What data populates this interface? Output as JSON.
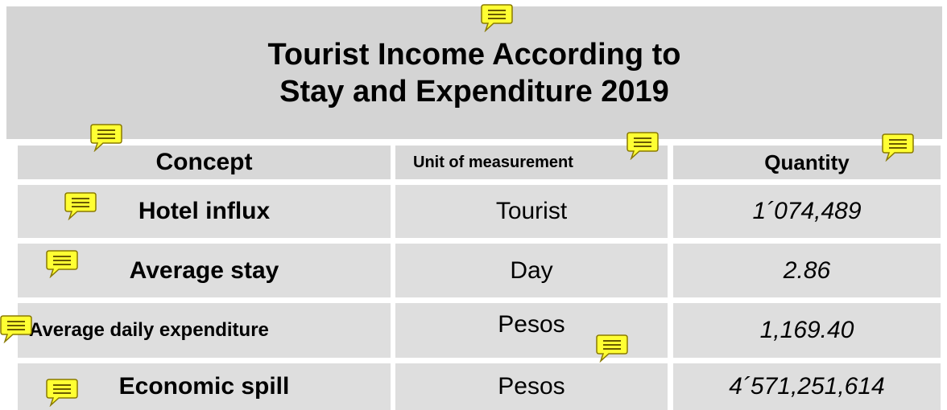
{
  "title": {
    "lines": [
      "Tourist Income According to",
      "Stay and Expenditure 2019"
    ]
  },
  "table": {
    "header": [
      "Concept",
      "Unit of measurement",
      "Quantity"
    ],
    "rows": [
      [
        "Hotel influx",
        "Tourist",
        "1´074,489"
      ],
      [
        "Average stay",
        "Day",
        "2.86"
      ],
      [
        "Average daily expenditure",
        "Pesos",
        "1,169.40"
      ],
      [
        "Economic spill",
        "Pesos",
        "4´571,251,614"
      ]
    ]
  }
}
